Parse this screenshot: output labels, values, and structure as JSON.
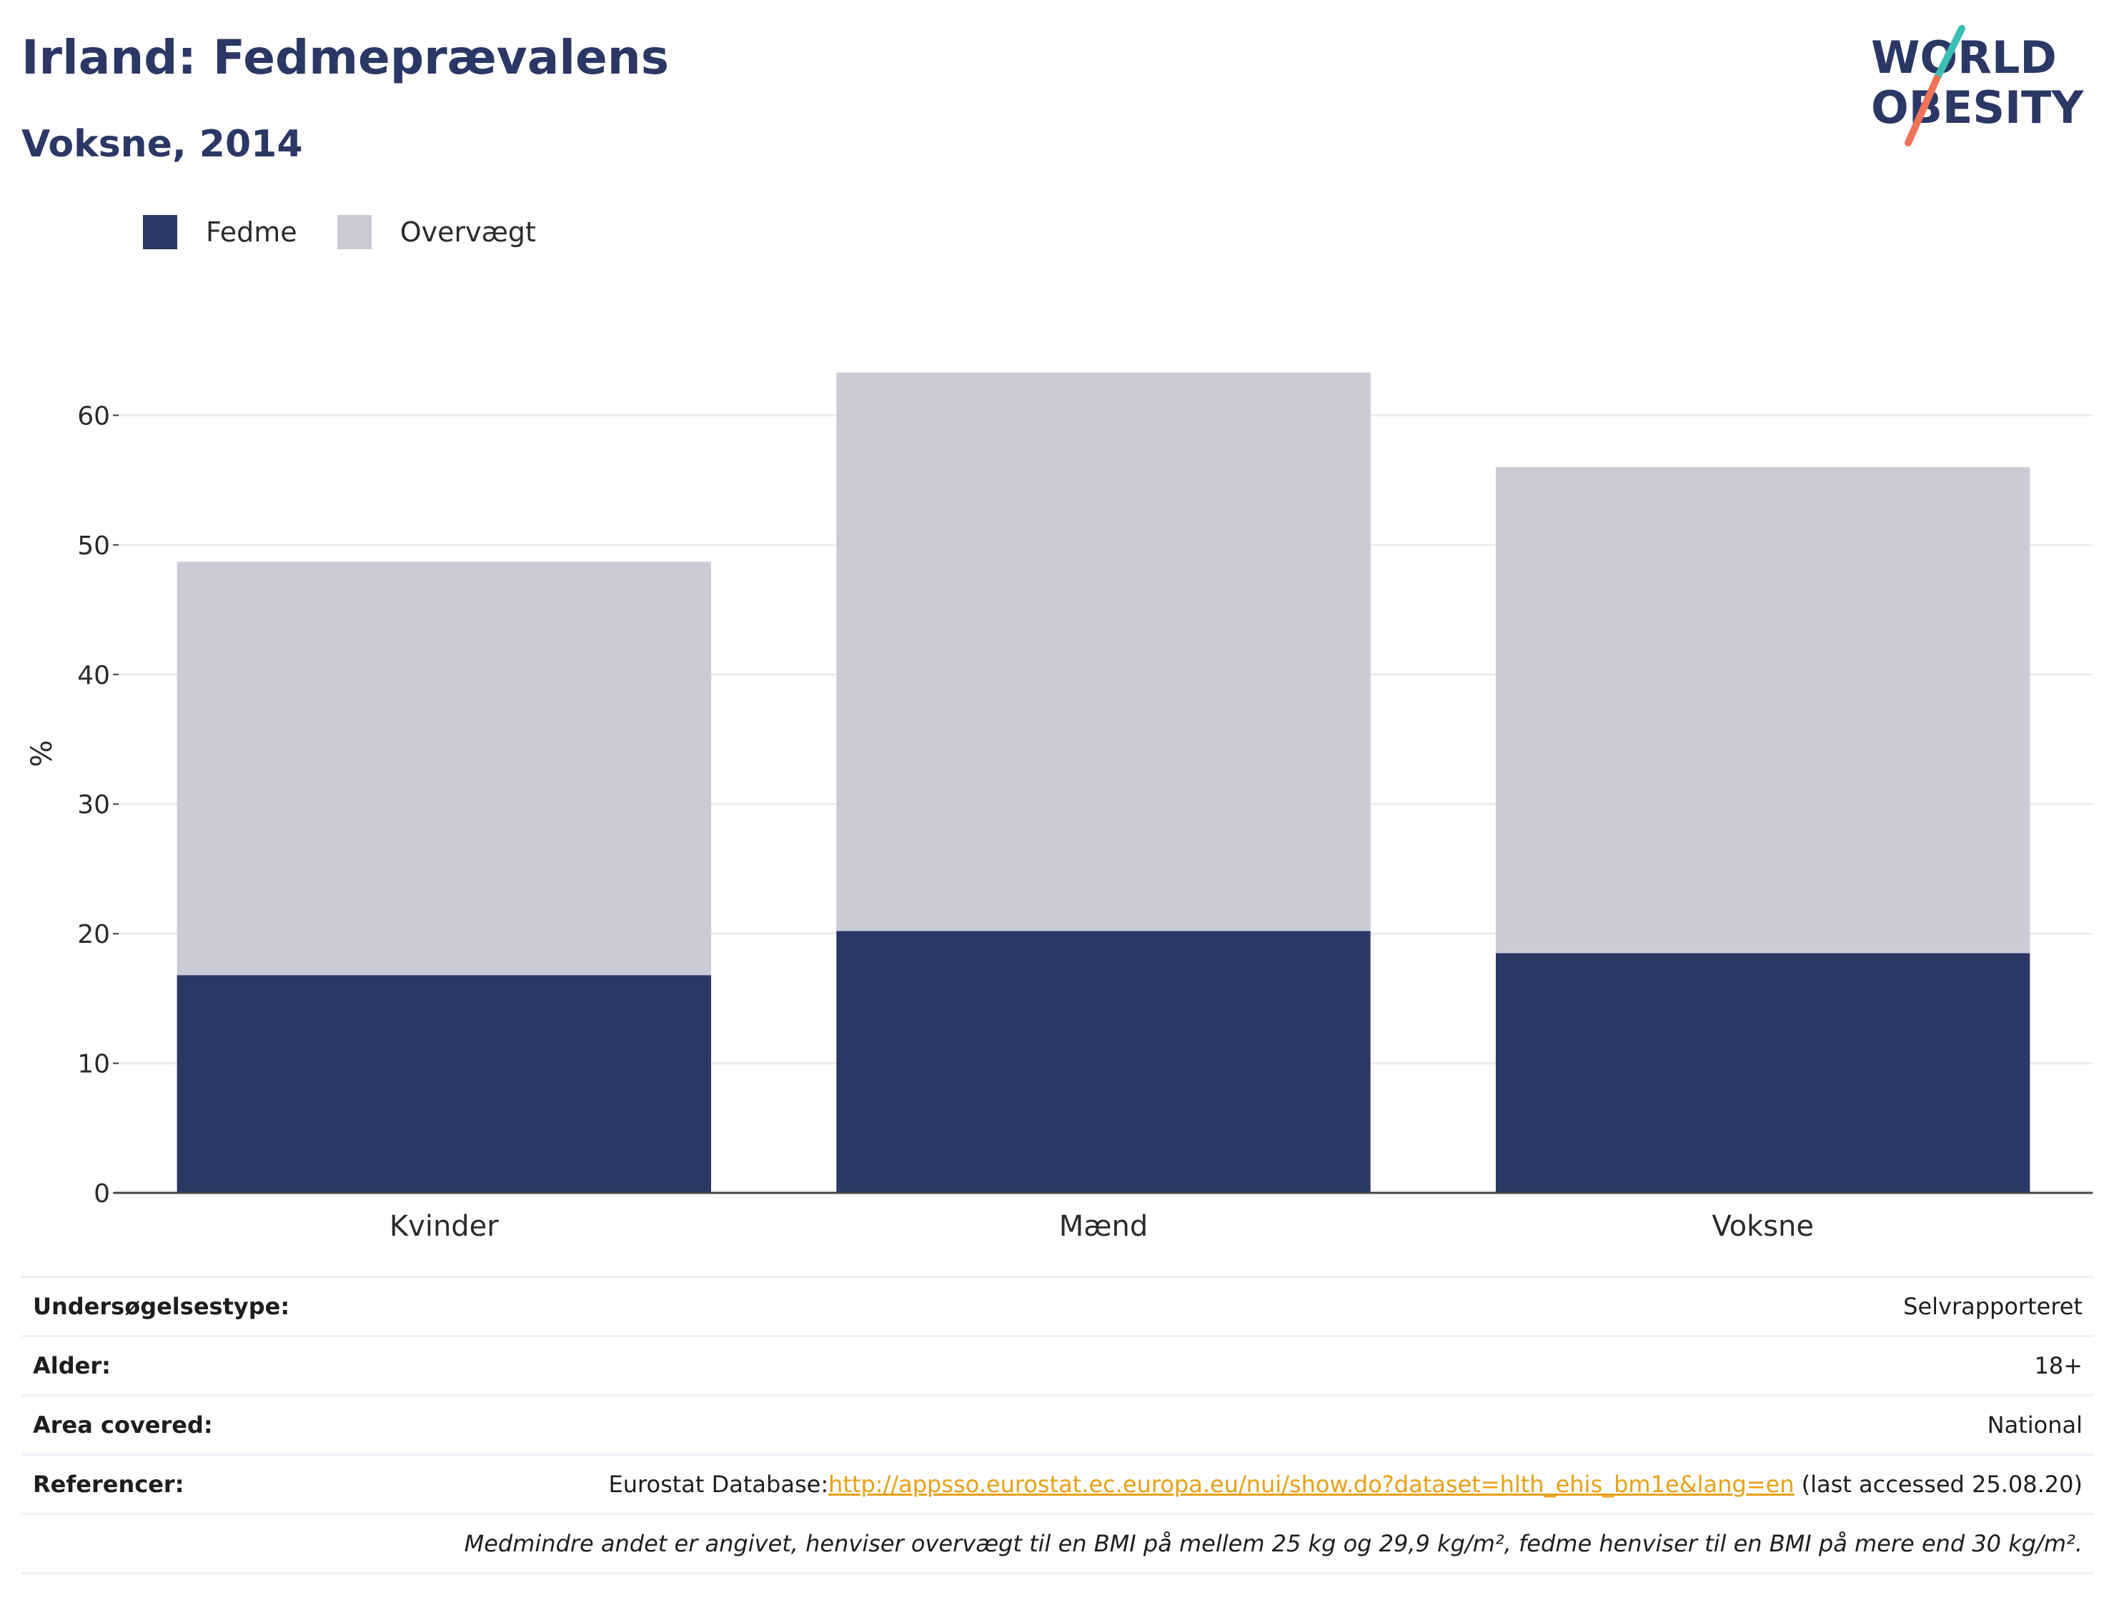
{
  "header": {
    "title": "Irland: Fedmeprævalens",
    "subtitle": "Voksne, 2014"
  },
  "logo": {
    "line1": "WORLD",
    "line2": "OBESITY",
    "text_color": "#2b3765",
    "accent_teal": "#3bbfb3",
    "accent_coral": "#f0735a"
  },
  "legend": {
    "items": [
      {
        "label": "Fedme",
        "color": "#2b3765"
      },
      {
        "label": "Overvægt",
        "color": "#cacbd7"
      }
    ]
  },
  "chart_data": {
    "type": "bar",
    "stacked": true,
    "categories": [
      "Kvinder",
      "Mænd",
      "Voksne"
    ],
    "series": [
      {
        "name": "Fedme",
        "values": [
          16.8,
          20.2,
          18.5
        ],
        "color": "#2b3765"
      },
      {
        "name": "Overvægt",
        "values": [
          31.9,
          43.1,
          37.5
        ],
        "color": "#cacbd7"
      }
    ],
    "ylabel": "%",
    "ylim": [
      0,
      70
    ],
    "yticks": [
      0,
      10,
      20,
      30,
      40,
      50,
      60
    ],
    "grid": true,
    "legend_position": "top-left"
  },
  "info": {
    "survey_type": {
      "label": "Undersøgelsestype:",
      "value": "Selvrapporteret"
    },
    "age": {
      "label": "Alder:",
      "value": "18+"
    },
    "area": {
      "label": "Area covered:",
      "value": "National"
    },
    "references": {
      "label": "Referencer:",
      "prefix": "Eurostat Database:",
      "link": "http://appsso.eurostat.ec.europa.eu/nui/show.do?dataset=hlth_ehis_bm1e&lang=en",
      "suffix": " (last accessed 25.08.20)"
    },
    "note": "Medmindre andet er angivet, henviser overvægt til en BMI på mellem 25 kg og 29,9 kg/m², fedme henviser til en BMI på mere end 30 kg/m²."
  }
}
